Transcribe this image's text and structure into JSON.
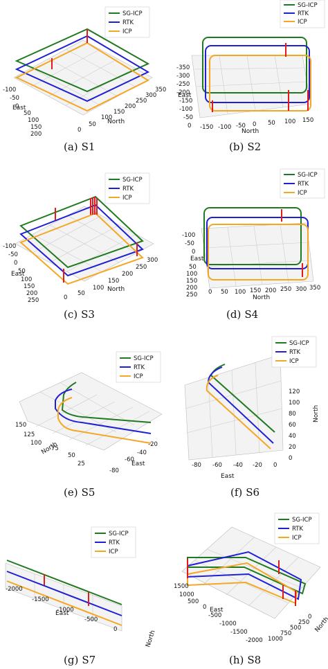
{
  "colors": {
    "sg_icp": "#1f7a1f",
    "rtk": "#1f1fd6",
    "icp": "#f5a623",
    "error": "#e31a1c",
    "grid": "#cccccc",
    "pane": "#f3f3f3"
  },
  "panels": [
    {
      "tag": "(a)",
      "name": "S1",
      "legend": [
        "SG-ICP",
        "RTK",
        "ICP"
      ],
      "axes": {
        "xlabel": "North",
        "ylabel": "East",
        "x_ticks": [
          "0",
          "50",
          "100",
          "150",
          "200",
          "250",
          "300",
          "350"
        ],
        "y_ticks": [
          "-100",
          "-50",
          "0",
          "50",
          "100",
          "150",
          "200"
        ]
      }
    },
    {
      "tag": "(b)",
      "name": "S2",
      "legend": [
        "SG-ICP",
        "RTK",
        "ICP"
      ],
      "axes": {
        "xlabel": "North",
        "ylabel": "East",
        "x_ticks": [
          "-150",
          "-100",
          "-50",
          "0",
          "50",
          "100",
          "150"
        ],
        "y_ticks": [
          "-350",
          "-300",
          "-250",
          "-200",
          "-150",
          "-100",
          "-50",
          "0"
        ]
      }
    },
    {
      "tag": "(c)",
      "name": "S3",
      "legend": [
        "SG-ICP",
        "RTK",
        "ICP"
      ],
      "axes": {
        "xlabel": "North",
        "ylabel": "East",
        "x_ticks": [
          "0",
          "50",
          "100",
          "150",
          "200",
          "250",
          "300"
        ],
        "y_ticks": [
          "-100",
          "-50",
          "0",
          "50",
          "100",
          "150",
          "200",
          "250"
        ]
      }
    },
    {
      "tag": "(d)",
      "name": "S4",
      "legend": [
        "SG-ICP",
        "RTK",
        "ICP"
      ],
      "axes": {
        "xlabel": "North",
        "ylabel": "East",
        "x_ticks": [
          "0",
          "50",
          "100",
          "150",
          "200",
          "250",
          "300",
          "350"
        ],
        "y_ticks": [
          "-100",
          "-50",
          "0",
          "50",
          "100",
          "150",
          "200",
          "250"
        ]
      }
    },
    {
      "tag": "(e)",
      "name": "S5",
      "legend": [
        "SG-ICP",
        "RTK",
        "ICP"
      ],
      "axes": {
        "xlabel": "East",
        "ylabel": "North",
        "x_ticks": [
          "-80",
          "-60",
          "-40",
          "-20"
        ],
        "y_ticks": [
          "150",
          "125",
          "100",
          "75",
          "50",
          "25"
        ]
      }
    },
    {
      "tag": "(f)",
      "name": "S6",
      "legend": [
        "SG-ICP",
        "RTK",
        "ICP"
      ],
      "axes": {
        "xlabel": "East",
        "ylabel": "North",
        "x_ticks": [
          "-80",
          "-60",
          "-40",
          "-20",
          "0"
        ],
        "y_ticks": [
          "0",
          "20",
          "40",
          "60",
          "80",
          "100",
          "120"
        ]
      }
    },
    {
      "tag": "(g)",
      "name": "S7",
      "legend": [
        "SG-ICP",
        "RTK",
        "ICP"
      ],
      "axes": {
        "xlabel": "East",
        "ylabel": "North",
        "x_ticks": [
          "-2000",
          "-1500",
          "-1000",
          "-500",
          "0"
        ],
        "y_ticks": []
      }
    },
    {
      "tag": "(h)",
      "name": "S8",
      "legend": [
        "SG-ICP",
        "RTK",
        "ICP"
      ],
      "axes": {
        "xlabel": "East",
        "ylabel": "North",
        "x_ticks": [
          "1500",
          "1000",
          "500",
          "0",
          "-500",
          "-1000",
          "-1500",
          "-2000"
        ],
        "y_ticks": [
          "1000",
          "750",
          "500",
          "250",
          "0"
        ]
      }
    }
  ],
  "chart_data": {
    "type": "line",
    "subplots": [
      "S1",
      "S2",
      "S3",
      "S4",
      "S5",
      "S6",
      "S7",
      "S8"
    ],
    "series": [
      {
        "name": "SG-ICP"
      },
      {
        "name": "RTK"
      },
      {
        "name": "ICP"
      }
    ],
    "projection": "3d",
    "grid": true,
    "legend": "top-right"
  }
}
